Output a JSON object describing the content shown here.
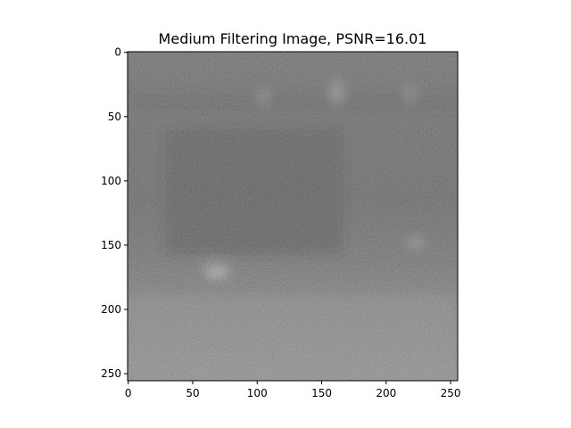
{
  "chart_data": {
    "type": "heatmap",
    "title": "Medium Filtering Image, PSNR=16.01",
    "colormap": "gray",
    "xlabel": "",
    "ylabel": "",
    "x_ticks": [
      0,
      50,
      100,
      150,
      200,
      250
    ],
    "y_ticks": [
      0,
      50,
      100,
      150,
      200,
      250
    ],
    "xlim": [
      -0.5,
      255.5
    ],
    "ylim": [
      255.5,
      -0.5
    ],
    "image_shape": [
      256,
      256
    ],
    "grid": false
  }
}
